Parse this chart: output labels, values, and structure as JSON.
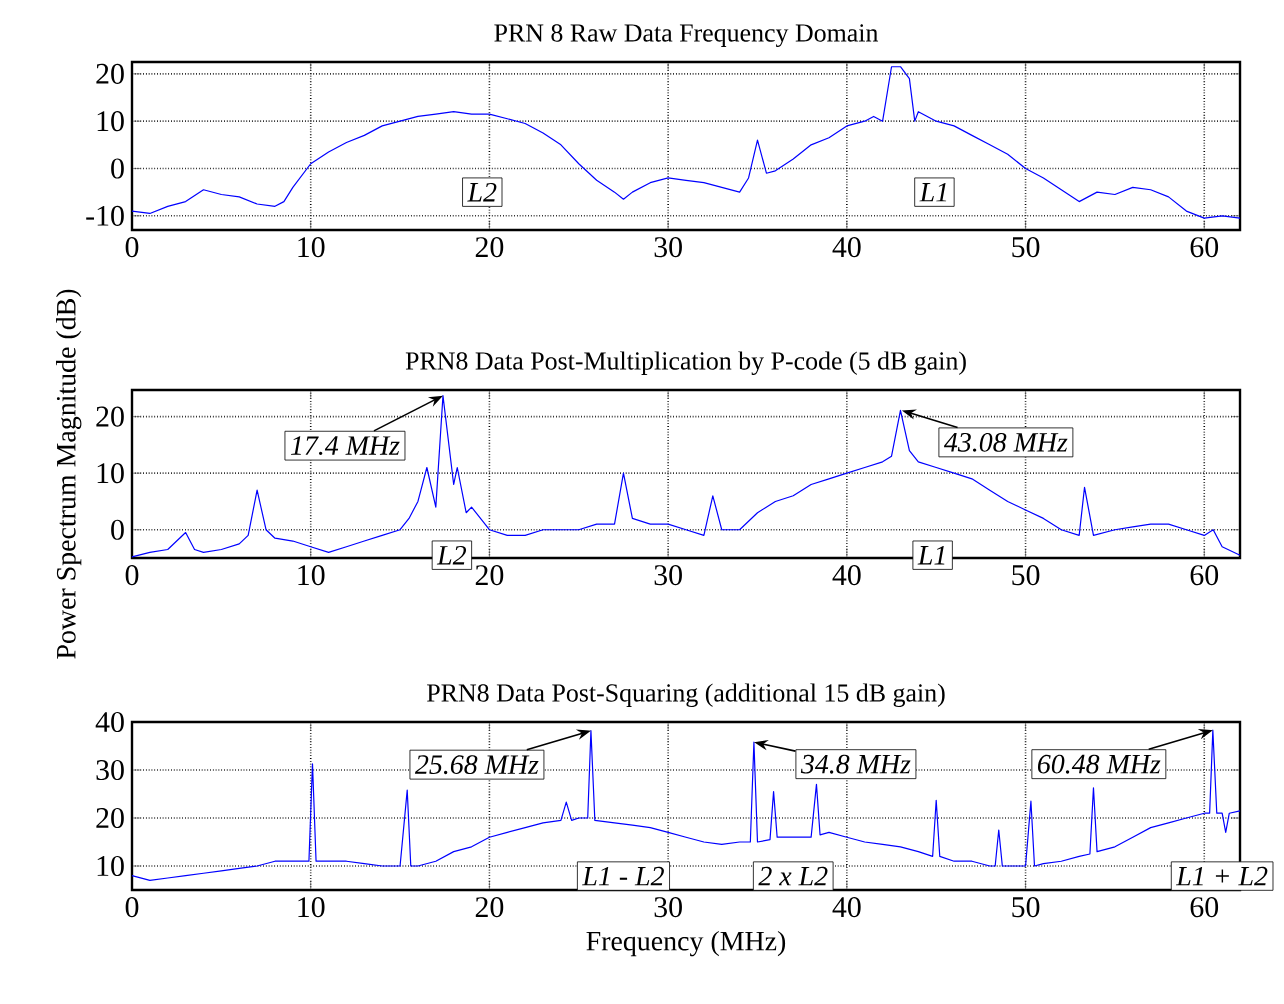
{
  "chart_data": [
    {
      "type": "line",
      "title": "PRN 8 Raw Data Frequency Domain",
      "xlim": [
        0,
        62
      ],
      "ylim": [
        -13,
        22.5
      ],
      "xticks": [
        0,
        10,
        20,
        30,
        40,
        50,
        60
      ],
      "yticks": [
        -10,
        0,
        10,
        20
      ],
      "grid": true,
      "annotations": [
        "L2",
        "L1"
      ],
      "series": [
        {
          "color": "#0000ff",
          "x": [
            0,
            1,
            2,
            3,
            4,
            5,
            6,
            7,
            8,
            8.5,
            9,
            10,
            11,
            12,
            13,
            14,
            15,
            16,
            17,
            18,
            19,
            20,
            21,
            22,
            23,
            24,
            25,
            26,
            27,
            27.5,
            28,
            29,
            30,
            31,
            32,
            33,
            34,
            34.5,
            35,
            35.5,
            36,
            37,
            38,
            39,
            40,
            41,
            41.5,
            42,
            42.5,
            43,
            43.5,
            43.8,
            44,
            45,
            46,
            47,
            48,
            49,
            50,
            51,
            52,
            53,
            54,
            55,
            56,
            57,
            58,
            59,
            60,
            61,
            62
          ],
          "values": [
            -9,
            -9.5,
            -8,
            -7,
            -4.5,
            -5.5,
            -6,
            -7.5,
            -8,
            -7,
            -4,
            1,
            3.5,
            5.5,
            7,
            9,
            10,
            11,
            11.5,
            12,
            11.5,
            11.5,
            10.5,
            9.5,
            7.5,
            5,
            1,
            -2.5,
            -5,
            -6.5,
            -5,
            -3,
            -2,
            -2.5,
            -3,
            -4,
            -5,
            -2,
            6,
            -1,
            -0.5,
            2,
            5,
            6.5,
            9,
            10,
            11,
            10,
            21.5,
            21.5,
            19,
            10,
            12,
            10,
            9,
            7,
            5,
            3,
            0,
            -2,
            -4.5,
            -7,
            -5,
            -5.5,
            -4,
            -4.5,
            -6,
            -9,
            -10.5,
            -10,
            -10.5
          ]
        }
      ]
    },
    {
      "type": "line",
      "title": "PRN8 Data Post-Multiplication by P-code (5 dB gain)",
      "ylabel": "Power Spectrum Magnitude (dB)",
      "xlim": [
        0,
        62
      ],
      "ylim": [
        -5,
        24.7
      ],
      "xticks": [
        0,
        10,
        20,
        30,
        40,
        50,
        60
      ],
      "yticks": [
        0,
        10,
        20
      ],
      "grid": true,
      "annotations": [
        {
          "text": "17.4 MHz",
          "x": 17.4,
          "y": 23.7
        },
        {
          "text": "43.08 MHz",
          "x": 43.08,
          "y": 21.1
        },
        "L2",
        "L1"
      ],
      "series": [
        {
          "color": "#0000ff",
          "x": [
            0,
            1,
            2,
            3,
            3.5,
            4,
            5,
            6,
            6.5,
            7,
            7.5,
            8,
            9,
            10,
            11,
            12,
            13,
            14,
            15,
            15.5,
            16,
            16.5,
            17,
            17.4,
            18,
            18.2,
            18.7,
            19,
            20,
            21,
            22,
            23,
            24,
            25,
            26,
            27,
            27.5,
            28,
            29,
            30,
            31,
            32,
            32.5,
            33,
            34,
            35,
            36,
            37,
            38,
            39,
            40,
            41,
            42,
            42.5,
            43,
            43.5,
            44,
            45,
            46,
            47,
            48,
            49,
            50,
            51,
            52,
            53,
            53.3,
            53.8,
            55,
            56,
            57,
            58,
            59,
            60,
            60.5,
            61,
            62
          ],
          "values": [
            -4.8,
            -4,
            -3.5,
            -0.5,
            -3.5,
            -4,
            -3.5,
            -2.5,
            -1,
            7,
            0,
            -1.5,
            -2,
            -3,
            -4,
            -3,
            -2,
            -1,
            0,
            2,
            5,
            11,
            4,
            23.7,
            8,
            11,
            3,
            4,
            0,
            -1,
            -1,
            0,
            0,
            0,
            1,
            1,
            10,
            2,
            1,
            1,
            0,
            -1,
            6,
            0,
            0,
            3,
            5,
            6,
            8,
            9,
            10,
            11,
            12,
            13,
            21.1,
            14,
            12,
            11,
            10,
            9,
            7,
            5,
            3.5,
            2,
            0,
            -1,
            7.5,
            -1,
            0,
            0.5,
            1,
            1,
            0,
            -1,
            0,
            -3,
            -4.5
          ]
        }
      ]
    },
    {
      "type": "line",
      "title": "PRN8 Data Post-Squaring (additional 15 dB gain)",
      "xlabel": "Frequency (MHz)",
      "xlim": [
        0,
        62
      ],
      "ylim": [
        5,
        40
      ],
      "xticks": [
        0,
        10,
        20,
        30,
        40,
        50,
        60
      ],
      "yticks": [
        10,
        20,
        30,
        40
      ],
      "grid": true,
      "annotations": [
        {
          "text": "25.68 MHz",
          "x": 25.68,
          "y": 38.2
        },
        {
          "text": "34.8 MHz",
          "x": 34.8,
          "y": 35.8
        },
        {
          "text": "60.48 MHz",
          "x": 60.48,
          "y": 38.3
        },
        "L1 - L2",
        "2 x L2",
        "L1 + L2"
      ],
      "series": [
        {
          "color": "#0000ff",
          "x": [
            0,
            1,
            2,
            3,
            4,
            5,
            6,
            7,
            8,
            9,
            9.9,
            10.1,
            10.3,
            11,
            12,
            13,
            14,
            15,
            15.4,
            15.6,
            16,
            17,
            18,
            19,
            20,
            21,
            22,
            23,
            24,
            24.3,
            24.6,
            25,
            25.5,
            25.68,
            25.9,
            27,
            28,
            29,
            30,
            31,
            32,
            33,
            34,
            34.6,
            34.8,
            35,
            35.7,
            35.9,
            36.1,
            37,
            38,
            38.3,
            38.5,
            39,
            40,
            41,
            42,
            43,
            44,
            44.8,
            45,
            45.2,
            46,
            47,
            48,
            48.3,
            48.5,
            48.7,
            49,
            50,
            50.3,
            50.5,
            51,
            52,
            53,
            53.6,
            53.8,
            54,
            55,
            56,
            57,
            58,
            59,
            60,
            60.3,
            60.48,
            60.7,
            61,
            61.2,
            61.4,
            62
          ],
          "values": [
            8,
            7,
            7.5,
            8,
            8.5,
            9,
            9.5,
            10,
            11,
            11,
            11,
            31.3,
            11,
            11,
            11,
            10.5,
            10,
            10,
            25.8,
            10,
            10,
            11,
            13,
            14,
            16,
            17,
            18,
            19,
            19.5,
            23.3,
            19.5,
            20,
            20,
            38.2,
            19.5,
            19,
            18.5,
            18,
            17,
            16,
            15,
            14.5,
            15,
            15,
            35.8,
            15,
            15.5,
            25.5,
            16,
            16,
            16,
            27,
            16.5,
            17,
            16,
            15,
            14.5,
            14,
            13,
            12,
            23.7,
            12,
            11,
            11,
            10,
            10,
            17.5,
            10,
            10,
            10,
            23.5,
            10,
            10.5,
            11,
            12,
            12.5,
            26.3,
            13,
            14,
            16,
            18,
            19,
            20,
            21,
            21,
            38.3,
            21,
            21,
            17,
            21,
            21.5
          ]
        }
      ]
    }
  ]
}
